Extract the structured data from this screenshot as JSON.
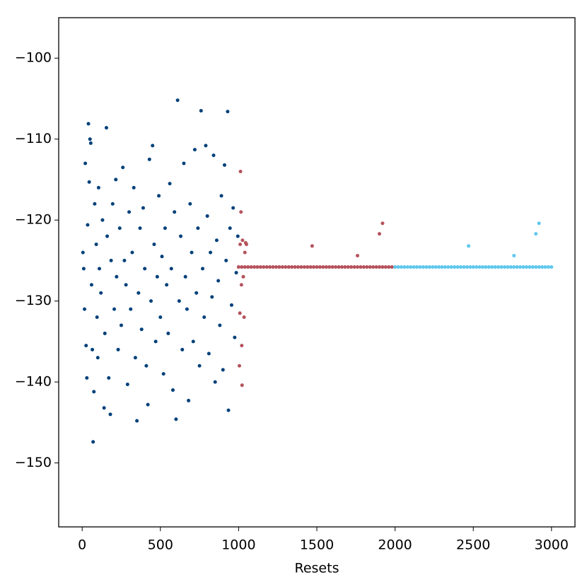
{
  "chart_data": {
    "type": "scatter",
    "x_label": "Resets",
    "xlim": [
      -150,
      3150
    ],
    "ylim": [
      -157.9,
      -95
    ],
    "xticks": [
      0,
      500,
      1000,
      1500,
      2000,
      2500,
      3000
    ],
    "yticks": [
      {
        "value": -150,
        "label": "−150"
      },
      {
        "value": -140,
        "label": "−140"
      },
      {
        "value": -130,
        "label": "−130"
      },
      {
        "value": -120,
        "label": "−120"
      },
      {
        "value": -110,
        "label": "−110"
      },
      {
        "value": -100,
        "label": "−100"
      }
    ],
    "grid": false,
    "series": [
      {
        "color": "#00407a",
        "x": [
          5,
          10,
          15,
          20,
          25,
          30,
          35,
          40,
          45,
          50,
          55,
          60,
          65,
          70,
          75,
          80,
          90,
          95,
          100,
          105,
          110,
          120,
          130,
          140,
          145,
          155,
          160,
          170,
          180,
          185,
          195,
          205,
          215,
          220,
          230,
          240,
          250,
          260,
          270,
          280,
          290,
          300,
          310,
          320,
          330,
          340,
          350,
          360,
          370,
          380,
          390,
          400,
          410,
          420,
          430,
          440,
          450,
          460,
          470,
          480,
          490,
          500,
          510,
          520,
          530,
          540,
          550,
          560,
          570,
          580,
          590,
          600,
          610,
          620,
          630,
          640,
          650,
          660,
          670,
          680,
          690,
          700,
          710,
          720,
          730,
          740,
          750,
          760,
          770,
          780,
          790,
          800,
          810,
          820,
          830,
          840,
          850,
          860,
          870,
          880,
          890,
          900,
          910,
          920,
          930,
          935,
          945,
          955,
          965,
          975,
          985,
          995
        ],
        "values": [
          -124,
          -126,
          -131,
          -113,
          -135.5,
          -139.5,
          -120.6,
          -108.1,
          -115.3,
          -110,
          -110.5,
          -128,
          -136,
          -147.4,
          -141.2,
          -118,
          -123,
          -132,
          -137,
          -116,
          -126,
          -129,
          -120,
          -143.2,
          -134,
          -108.6,
          -122,
          -139.5,
          -144,
          -125,
          -118,
          -131,
          -115,
          -127,
          -136,
          -121,
          -133,
          -113.5,
          -125,
          -128,
          -140.3,
          -119,
          -131,
          -124,
          -116,
          -137,
          -144.8,
          -129,
          -121,
          -133.5,
          -118.5,
          -126,
          -138,
          -142.8,
          -112.5,
          -130,
          -110.8,
          -123,
          -135,
          -127,
          -117,
          -132,
          -124.5,
          -139,
          -121,
          -128,
          -134,
          -115.5,
          -126,
          -141,
          -119,
          -144.6,
          -105.2,
          -130,
          -122,
          -136,
          -113,
          -127,
          -131,
          -142.3,
          -118,
          -124,
          -135,
          -111.3,
          -129,
          -121,
          -138,
          -106.5,
          -126,
          -132,
          -110.8,
          -119.5,
          -136.5,
          -124,
          -129.5,
          -112,
          -140,
          -122.5,
          -127.5,
          -133,
          -117,
          -138.5,
          -113.2,
          -125,
          -106.6,
          -143.5,
          -121,
          -130.5,
          -118.5,
          -134.5,
          -126.5,
          -122
        ]
      },
      {
        "color": "#b5525c",
        "x": [
          1005,
          1008,
          1010,
          1012,
          1015,
          1018,
          1020,
          1022,
          1025,
          1030,
          1035,
          1040,
          1045,
          1050,
          1470,
          1760,
          1900,
          1920,
          1000,
          1020,
          1040,
          1060,
          1080,
          1100,
          1120,
          1140,
          1160,
          1180,
          1200,
          1220,
          1240,
          1260,
          1280,
          1300,
          1320,
          1340,
          1360,
          1380,
          1400,
          1420,
          1440,
          1460,
          1480,
          1500,
          1520,
          1540,
          1560,
          1580,
          1600,
          1620,
          1640,
          1660,
          1680,
          1700,
          1720,
          1740,
          1760,
          1780,
          1800,
          1820,
          1840,
          1860,
          1880,
          1900,
          1920,
          1940,
          1960,
          1980,
          2000
        ],
        "values": [
          -138,
          -131.5,
          -123,
          -114,
          -119,
          -128,
          -135.5,
          -140.4,
          -122.5,
          -127,
          -132,
          -124,
          -122.8,
          -123,
          -123.2,
          -124.4,
          -121.7,
          -120.4,
          -125.8,
          -125.8,
          -125.8,
          -125.8,
          -125.8,
          -125.8,
          -125.8,
          -125.8,
          -125.8,
          -125.8,
          -125.8,
          -125.8,
          -125.8,
          -125.8,
          -125.8,
          -125.8,
          -125.8,
          -125.8,
          -125.8,
          -125.8,
          -125.8,
          -125.8,
          -125.8,
          -125.8,
          -125.8,
          -125.8,
          -125.8,
          -125.8,
          -125.8,
          -125.8,
          -125.8,
          -125.8,
          -125.8,
          -125.8,
          -125.8,
          -125.8,
          -125.8,
          -125.8,
          -125.8,
          -125.8,
          -125.8,
          -125.8,
          -125.8,
          -125.8,
          -125.8,
          -125.8,
          -125.8,
          -125.8,
          -125.8,
          -125.8,
          -125.8
        ]
      },
      {
        "color": "#5ec8ee",
        "x": [
          2470,
          2760,
          2900,
          2920,
          2000,
          2020,
          2040,
          2060,
          2080,
          2100,
          2120,
          2140,
          2160,
          2180,
          2200,
          2220,
          2240,
          2260,
          2280,
          2300,
          2320,
          2340,
          2360,
          2380,
          2400,
          2420,
          2440,
          2460,
          2480,
          2500,
          2520,
          2540,
          2560,
          2580,
          2600,
          2620,
          2640,
          2660,
          2680,
          2700,
          2720,
          2740,
          2760,
          2780,
          2800,
          2820,
          2840,
          2860,
          2880,
          2900,
          2920,
          2940,
          2960,
          2980,
          3000
        ],
        "values": [
          -123.2,
          -124.4,
          -121.7,
          -120.4,
          -125.8,
          -125.8,
          -125.8,
          -125.8,
          -125.8,
          -125.8,
          -125.8,
          -125.8,
          -125.8,
          -125.8,
          -125.8,
          -125.8,
          -125.8,
          -125.8,
          -125.8,
          -125.8,
          -125.8,
          -125.8,
          -125.8,
          -125.8,
          -125.8,
          -125.8,
          -125.8,
          -125.8,
          -125.8,
          -125.8,
          -125.8,
          -125.8,
          -125.8,
          -125.8,
          -125.8,
          -125.8,
          -125.8,
          -125.8,
          -125.8,
          -125.8,
          -125.8,
          -125.8,
          -125.8,
          -125.8,
          -125.8,
          -125.8,
          -125.8,
          -125.8,
          -125.8,
          -125.8,
          -125.8,
          -125.8,
          -125.8,
          -125.8,
          -125.8
        ]
      }
    ]
  }
}
